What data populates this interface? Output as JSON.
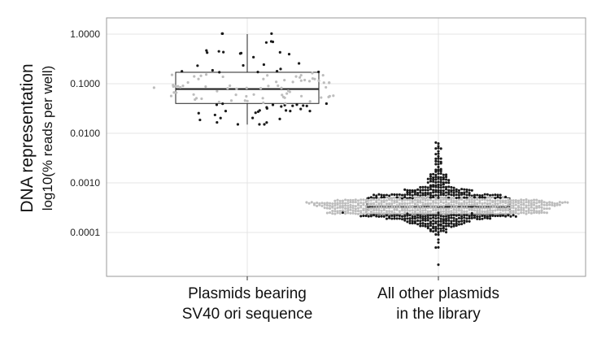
{
  "chart_data": {
    "type": "box-swarm",
    "title": "",
    "ylabel": "DNA representation",
    "ylabel_sub": "log10(% reads per well)",
    "y_scale": "log10",
    "ylim": [
      3e-05,
      1.3
    ],
    "y_ticks": [
      {
        "value": 1.0,
        "label": "1.0000"
      },
      {
        "value": 0.1,
        "label": "0.1000"
      },
      {
        "value": 0.01,
        "label": "0.0100"
      },
      {
        "value": 0.001,
        "label": "0.0010"
      },
      {
        "value": 0.0001,
        "label": "0.0001"
      }
    ],
    "grid": true,
    "categories": [
      {
        "line1": "Plasmids bearing",
        "line2": "SV40 ori sequence"
      },
      {
        "line1": "All other plasmids",
        "line2": "in the library"
      }
    ],
    "boxes": [
      {
        "q1": 0.04,
        "median": 0.078,
        "q3": 0.17,
        "whisker_low": 0.015,
        "whisker_high": 1.0
      },
      {
        "q1": 0.00023,
        "median": 0.00033,
        "q3": 0.0005,
        "whisker_low": 8.5e-05,
        "whisker_high": 0.00095
      }
    ],
    "colors": {
      "point": "#1a1a1a",
      "point_inside_box": "#bdbdbd",
      "grid": "#e4e4e4",
      "panel_border": "#9a9a9a",
      "box_edge": "#222222"
    }
  }
}
